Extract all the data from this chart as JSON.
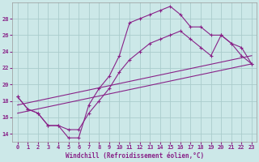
{
  "background_color": "#cce8e8",
  "grid_color": "#aacccc",
  "line_color": "#882288",
  "xlabel": "Windchill (Refroidissement éolien,°C)",
  "xlim": [
    -0.5,
    23.5
  ],
  "ylim": [
    13.0,
    30.0
  ],
  "yticks": [
    14,
    16,
    18,
    20,
    22,
    24,
    26,
    28
  ],
  "xticks": [
    0,
    1,
    2,
    3,
    4,
    5,
    6,
    7,
    8,
    9,
    10,
    11,
    12,
    13,
    14,
    15,
    16,
    17,
    18,
    19,
    20,
    21,
    22,
    23
  ],
  "lines": [
    {
      "x": [
        0,
        1,
        2,
        3,
        4,
        5,
        6,
        7,
        8,
        9,
        10,
        11,
        12,
        13,
        14,
        15,
        16,
        17,
        18,
        19,
        20,
        21,
        22,
        23
      ],
      "y": [
        18.5,
        17.0,
        16.5,
        15.0,
        15.0,
        13.5,
        13.5,
        17.5,
        19.5,
        21.0,
        23.5,
        27.5,
        28.0,
        28.5,
        29.0,
        29.5,
        28.5,
        27.0,
        27.0,
        26.0,
        26.0,
        25.0,
        23.5,
        22.5
      ],
      "has_markers": true
    },
    {
      "x": [
        0,
        1,
        2,
        3,
        4,
        5,
        6,
        7,
        8,
        9,
        10,
        11,
        12,
        13,
        14,
        15,
        16,
        17,
        18,
        19,
        20,
        21,
        22,
        23
      ],
      "y": [
        18.5,
        17.0,
        16.5,
        15.0,
        15.0,
        14.5,
        14.5,
        16.5,
        18.0,
        19.5,
        21.5,
        23.0,
        24.0,
        25.0,
        25.5,
        26.0,
        26.5,
        25.5,
        24.5,
        23.5,
        26.0,
        25.0,
        24.5,
        22.5
      ],
      "has_markers": true
    },
    {
      "x": [
        0,
        23
      ],
      "y": [
        16.5,
        22.5
      ],
      "has_markers": false
    },
    {
      "x": [
        0,
        23
      ],
      "y": [
        17.5,
        23.5
      ],
      "has_markers": false
    }
  ],
  "axis_fontsize": 5.5,
  "tick_fontsize": 5.0
}
